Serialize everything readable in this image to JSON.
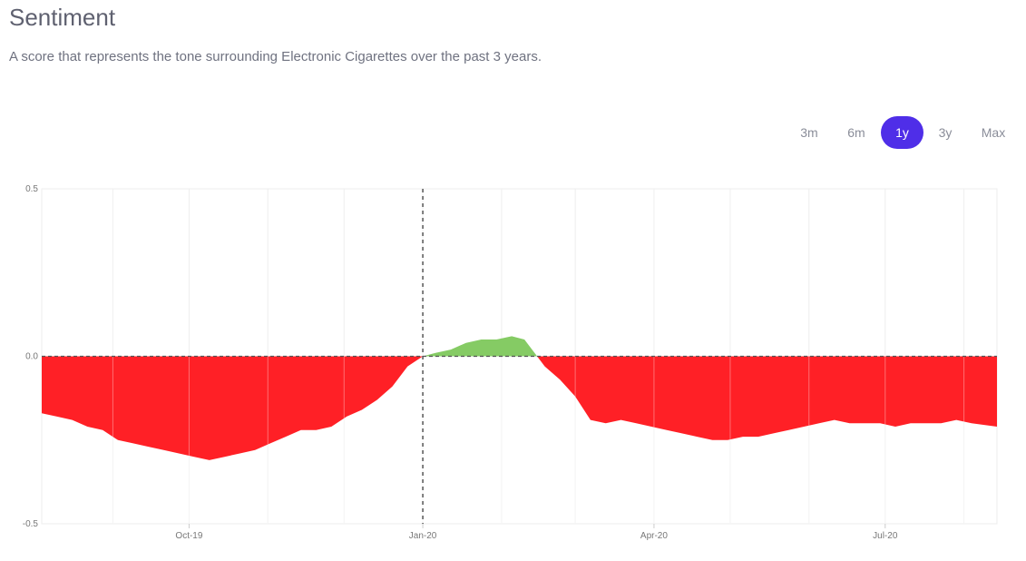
{
  "header": {
    "title": "Sentiment",
    "subtitle": "A score that represents the tone surrounding Electronic Cigarettes over the past 3 years."
  },
  "range_buttons": [
    {
      "label": "3m",
      "active": false
    },
    {
      "label": "6m",
      "active": false
    },
    {
      "label": "1y",
      "active": true
    },
    {
      "label": "3y",
      "active": false
    },
    {
      "label": "Max",
      "active": false
    }
  ],
  "colors": {
    "negative": "#ff2026",
    "positive": "#85cb64",
    "accent": "#4f2ee8"
  },
  "chart_data": {
    "type": "area",
    "ylim": [
      -0.5,
      0.5
    ],
    "xlim": [
      "2019-08-04",
      "2020-08-14"
    ],
    "yticks": [
      {
        "value": 0.5,
        "label": "0.5"
      },
      {
        "value": 0.0,
        "label": "0.0"
      },
      {
        "value": -0.5,
        "label": "-0.5"
      }
    ],
    "xticks": [
      {
        "date": "2019-10-01",
        "label": "Oct-19"
      },
      {
        "date": "2020-01-01",
        "label": "Jan-20"
      },
      {
        "date": "2020-04-01",
        "label": "Apr-20"
      },
      {
        "date": "2020-07-01",
        "label": "Jul-20"
      }
    ],
    "marker_date": "2020-01-01",
    "baseline": 0,
    "series": [
      {
        "points": [
          [
            "2019-08-04",
            -0.17
          ],
          [
            "2019-08-10",
            -0.18
          ],
          [
            "2019-08-16",
            -0.19
          ],
          [
            "2019-08-22",
            -0.21
          ],
          [
            "2019-08-28",
            -0.22
          ],
          [
            "2019-09-03",
            -0.25
          ],
          [
            "2019-09-09",
            -0.26
          ],
          [
            "2019-09-15",
            -0.27
          ],
          [
            "2019-09-21",
            -0.28
          ],
          [
            "2019-09-27",
            -0.29
          ],
          [
            "2019-10-03",
            -0.3
          ],
          [
            "2019-10-09",
            -0.31
          ],
          [
            "2019-10-15",
            -0.3
          ],
          [
            "2019-10-21",
            -0.29
          ],
          [
            "2019-10-27",
            -0.28
          ],
          [
            "2019-11-02",
            -0.26
          ],
          [
            "2019-11-08",
            -0.24
          ],
          [
            "2019-11-14",
            -0.22
          ],
          [
            "2019-11-20",
            -0.22
          ],
          [
            "2019-11-26",
            -0.21
          ],
          [
            "2019-12-02",
            -0.18
          ],
          [
            "2019-12-08",
            -0.16
          ],
          [
            "2019-12-14",
            -0.13
          ],
          [
            "2019-12-20",
            -0.09
          ],
          [
            "2019-12-26",
            -0.03
          ],
          [
            "2020-01-01",
            0.0
          ],
          [
            "2020-01-06",
            0.01
          ],
          [
            "2020-01-12",
            0.02
          ],
          [
            "2020-01-18",
            0.04
          ],
          [
            "2020-01-24",
            0.05
          ],
          [
            "2020-01-30",
            0.05
          ],
          [
            "2020-02-05",
            0.06
          ],
          [
            "2020-02-10",
            0.05
          ],
          [
            "2020-02-14",
            0.01
          ],
          [
            "2020-02-18",
            -0.03
          ],
          [
            "2020-02-24",
            -0.07
          ],
          [
            "2020-03-01",
            -0.12
          ],
          [
            "2020-03-07",
            -0.19
          ],
          [
            "2020-03-13",
            -0.2
          ],
          [
            "2020-03-19",
            -0.19
          ],
          [
            "2020-03-25",
            -0.2
          ],
          [
            "2020-03-31",
            -0.21
          ],
          [
            "2020-04-06",
            -0.22
          ],
          [
            "2020-04-12",
            -0.23
          ],
          [
            "2020-04-18",
            -0.24
          ],
          [
            "2020-04-24",
            -0.25
          ],
          [
            "2020-04-30",
            -0.25
          ],
          [
            "2020-05-06",
            -0.24
          ],
          [
            "2020-05-12",
            -0.24
          ],
          [
            "2020-05-18",
            -0.23
          ],
          [
            "2020-05-24",
            -0.22
          ],
          [
            "2020-05-30",
            -0.21
          ],
          [
            "2020-06-05",
            -0.2
          ],
          [
            "2020-06-11",
            -0.19
          ],
          [
            "2020-06-17",
            -0.2
          ],
          [
            "2020-06-23",
            -0.2
          ],
          [
            "2020-06-29",
            -0.2
          ],
          [
            "2020-07-05",
            -0.21
          ],
          [
            "2020-07-11",
            -0.2
          ],
          [
            "2020-07-17",
            -0.2
          ],
          [
            "2020-07-23",
            -0.2
          ],
          [
            "2020-07-29",
            -0.19
          ],
          [
            "2020-08-04",
            -0.2
          ],
          [
            "2020-08-14",
            -0.21
          ]
        ]
      }
    ]
  }
}
